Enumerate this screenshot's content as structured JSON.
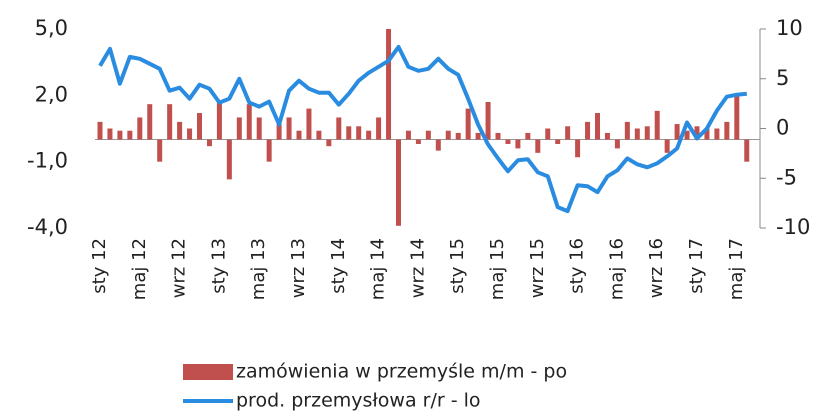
{
  "chart_data": {
    "type": "combo",
    "categories": [
      "sty 12",
      null,
      null,
      null,
      "maj 12",
      null,
      null,
      null,
      "wrz 12",
      null,
      null,
      null,
      "sty 13",
      null,
      null,
      null,
      "maj 13",
      null,
      null,
      null,
      "wrz 13",
      null,
      null,
      null,
      "sty 14",
      null,
      null,
      null,
      "maj 14",
      null,
      null,
      null,
      "wrz 14",
      null,
      null,
      null,
      "sty 15",
      null,
      null,
      null,
      "maj 15",
      null,
      null,
      null,
      "wrz 15",
      null,
      null,
      null,
      "sty 16",
      null,
      null,
      null,
      "maj 16",
      null,
      null,
      null,
      "wrz 16",
      null,
      null,
      null,
      "sty 17",
      null,
      null,
      null,
      "maj 17",
      null
    ],
    "series": [
      {
        "name": "zamówienia w przemyśle m/m - po",
        "type": "bar",
        "color": "#c0504d",
        "values": [
          0.8,
          0.5,
          0.4,
          0.4,
          1.0,
          1.6,
          -1.0,
          1.6,
          0.8,
          0.5,
          1.2,
          -0.3,
          1.7,
          -1.8,
          1.0,
          1.6,
          1.0,
          -1.0,
          0.7,
          1.0,
          0.4,
          1.4,
          0.4,
          -0.3,
          1.0,
          0.6,
          0.6,
          0.4,
          1.0,
          5.0,
          -3.9,
          0.4,
          -0.2,
          0.4,
          -0.5,
          0.4,
          0.3,
          1.4,
          0.3,
          1.7,
          0.3,
          -0.2,
          -0.4,
          0.3,
          -0.6,
          0.5,
          -0.2,
          0.6,
          -0.8,
          0.8,
          1.2,
          0.3,
          -0.4,
          0.8,
          0.5,
          0.6,
          1.3,
          -0.6,
          0.7,
          0.4,
          0.6,
          0.5,
          0.5,
          0.8,
          2.0,
          -1.0
        ]
      },
      {
        "name": "prod. przemysłowa r/r - lo",
        "type": "line",
        "axis": "y2",
        "color": "#2a8ce0",
        "values": [
          6.3,
          8.0,
          4.5,
          7.2,
          7.0,
          6.5,
          6.0,
          3.8,
          4.1,
          3.0,
          4.4,
          4.0,
          2.6,
          3.0,
          5.0,
          2.6,
          2.2,
          2.7,
          0.4,
          3.8,
          4.8,
          4.0,
          3.6,
          3.6,
          2.4,
          3.5,
          4.8,
          5.6,
          6.2,
          6.8,
          8.2,
          6.2,
          5.8,
          6.0,
          7.0,
          6.0,
          5.4,
          3.0,
          0.4,
          -1.6,
          -3.0,
          -4.3,
          -3.2,
          -3.1,
          -4.4,
          -4.8,
          -7.9,
          -8.3,
          -5.7,
          -5.8,
          -6.4,
          -4.8,
          -4.2,
          -3.0,
          -3.6,
          -3.9,
          -3.5,
          -2.8,
          -2.0,
          0.6,
          -1.0,
          0.0,
          1.8,
          3.2,
          3.4,
          3.5
        ]
      }
    ],
    "ylim": [
      -4,
      5
    ],
    "yticks": [
      {
        "value": 5,
        "label": "5,0"
      },
      {
        "value": 2,
        "label": "2,0"
      },
      {
        "value": -1,
        "label": "-1,0"
      },
      {
        "value": -4,
        "label": "-4,0"
      }
    ],
    "y2lim": [
      -10,
      10
    ],
    "y2ticks": [
      10,
      5,
      0,
      -5,
      -10
    ],
    "legend": "bottom"
  }
}
